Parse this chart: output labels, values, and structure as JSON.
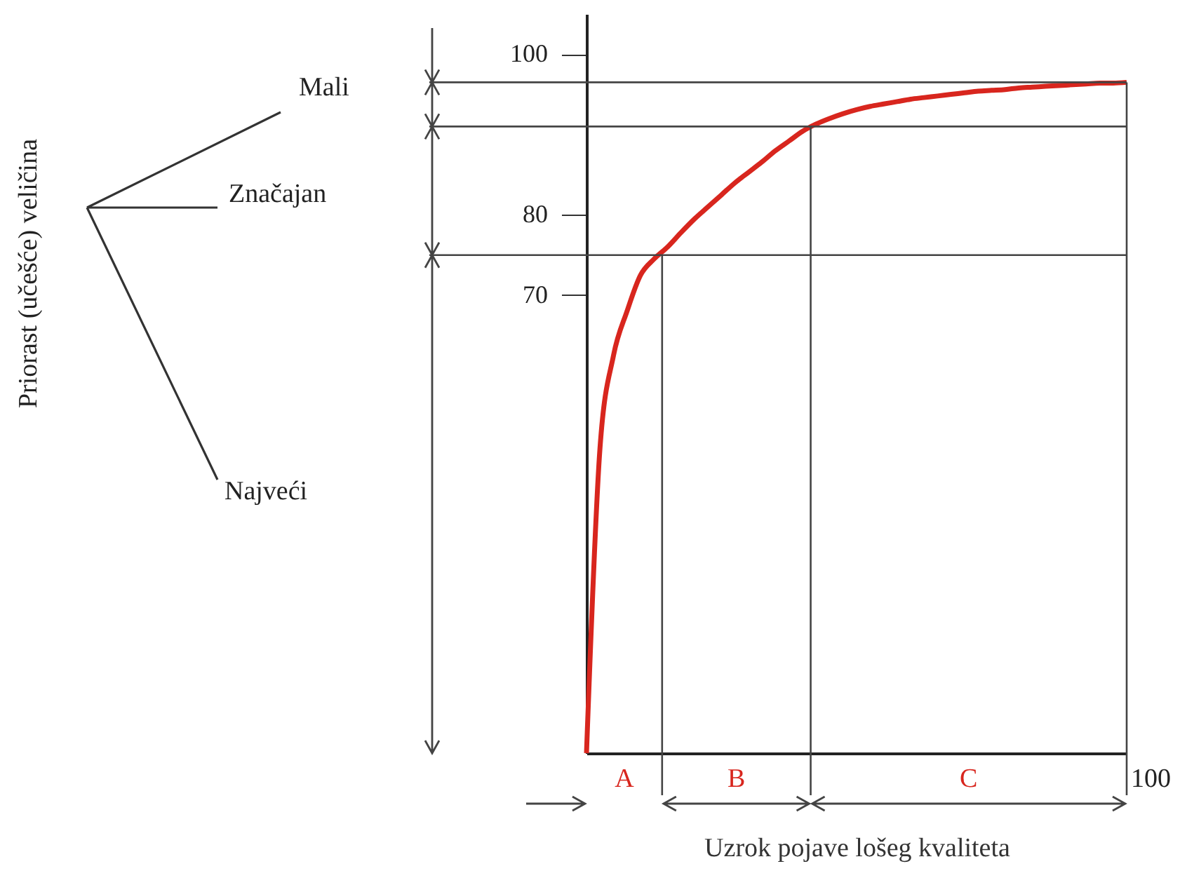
{
  "chart_data": {
    "type": "line",
    "xlabel": "Uzrok pojave lošeg kvaliteta",
    "categories": [
      null,
      null,
      null,
      null,
      null,
      null,
      null,
      null,
      null,
      null,
      null,
      null,
      null,
      null,
      null,
      null,
      null,
      null,
      null,
      null,
      null,
      null,
      null,
      null,
      null,
      null,
      null,
      null,
      null,
      null,
      null,
      null,
      null,
      null,
      null,
      null,
      null,
      null,
      null,
      null,
      null
    ],
    "series": [
      {
        "color": "#d8261e",
        "values": [
          13,
          51,
          62.5,
          68,
          72.5,
          74.5,
          76,
          77.8,
          79.5,
          81,
          82.5,
          84,
          85.3,
          86.6,
          88,
          89.2,
          90.4,
          91.3,
          92,
          92.6,
          93.1,
          93.5,
          93.8,
          94.1,
          94.4,
          94.6,
          94.8,
          95,
          95.2,
          95.4,
          95.5,
          95.6,
          95.8,
          95.9,
          96,
          96.1,
          96.2,
          96.3,
          96.4,
          96.4,
          96.5
        ]
      }
    ],
    "ylim": [
      13,
      105
    ],
    "yticks": [
      70,
      80,
      100
    ],
    "grid": false,
    "marker": "none",
    "line_style": "solid",
    "ref_lines": [
      {
        "axis": "y",
        "value": 75
      },
      {
        "axis": "y",
        "value": 91
      },
      {
        "axis": "y",
        "value": 96.5
      }
    ],
    "annotations": [
      "Priorast (učešće) veličina",
      "Mali",
      "Značajan",
      "Najveći",
      "A",
      "B",
      "C",
      "100"
    ]
  }
}
